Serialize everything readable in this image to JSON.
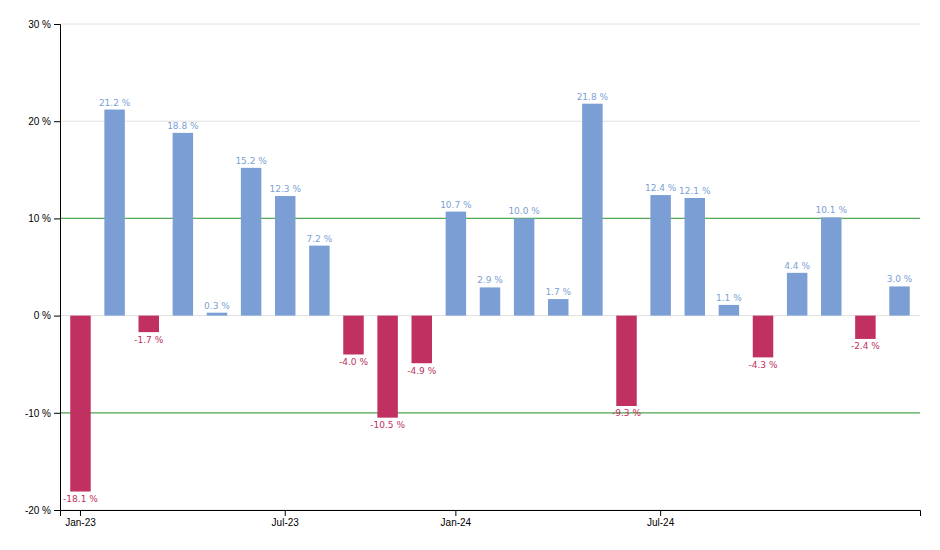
{
  "chart_data": {
    "type": "bar",
    "categories": [
      "Jan-23",
      null,
      null,
      null,
      null,
      null,
      "Jul-23",
      null,
      null,
      null,
      null,
      "Jan-24",
      null,
      null,
      null,
      null,
      null,
      "Jul-24",
      null,
      null,
      null,
      null,
      null,
      null,
      null
    ],
    "values": [
      -18.1,
      21.2,
      -1.7,
      18.8,
      0.3,
      15.2,
      12.3,
      7.2,
      -4.0,
      -10.5,
      -4.9,
      10.7,
      2.9,
      10.0,
      1.7,
      21.8,
      -9.3,
      12.4,
      12.1,
      1.1,
      -4.3,
      4.4,
      10.1,
      -2.4,
      3.0
    ],
    "value_labels": [
      "-18.1 %",
      "21.2 %",
      "-1.7 %",
      "18.8 %",
      "0.3 %",
      "15.2 %",
      "12.3 %",
      "7.2 %",
      "-4.0 %",
      "-10.5 %",
      "-4.9 %",
      "10.7 %",
      "2.9 %",
      "10.0 %",
      "1.7 %",
      "21.8 %",
      "-9.3 %",
      "12.4 %",
      "12.1 %",
      "1.1 %",
      "-4.3 %",
      "4.4 %",
      "10.1 %",
      "-2.4 %",
      "3.0 %"
    ],
    "colors": [
      "#c03060",
      "#7b9fd4",
      "#c03060",
      "#7b9fd4",
      "#7b9fd4",
      "#7b9fd4",
      "#7b9fd4",
      "#7b9fd4",
      "#c03060",
      "#c03060",
      "#c03060",
      "#7b9fd4",
      "#7b9fd4",
      "#7b9fd4",
      "#7b9fd4",
      "#7b9fd4",
      "#c03060",
      "#7b9fd4",
      "#7b9fd4",
      "#7b9fd4",
      "#c03060",
      "#7b9fd4",
      "#7b9fd4",
      "#c03060",
      "#7b9fd4"
    ],
    "ylim": [
      -20,
      30
    ],
    "yticks": [
      {
        "value": -20,
        "label": "-20 %"
      },
      {
        "value": -10,
        "label": "-10 %"
      },
      {
        "value": 0,
        "label": "0 %"
      },
      {
        "value": 10,
        "label": "10 %"
      },
      {
        "value": 20,
        "label": "20 %"
      },
      {
        "value": 30,
        "label": "30 %"
      }
    ],
    "reference_lines": [
      {
        "value": 10,
        "color": "#55aa55"
      },
      {
        "value": -10,
        "color": "#55aa55"
      }
    ],
    "grid": true,
    "data_labels": true
  }
}
